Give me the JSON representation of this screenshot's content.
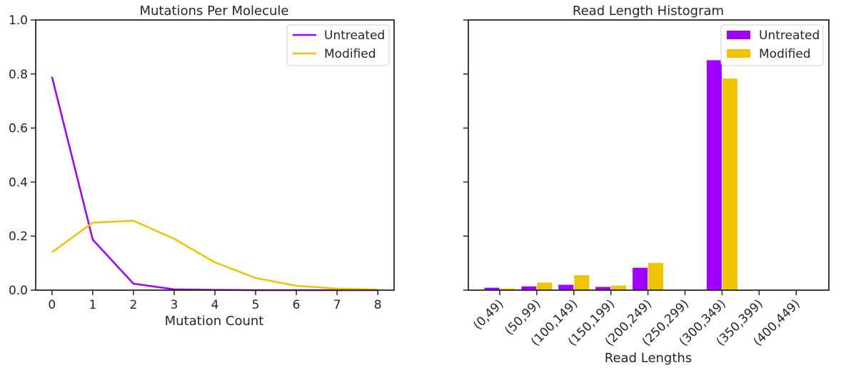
{
  "colors": {
    "untreated": "#a100ff",
    "modified": "#efc300"
  },
  "chart_data": [
    {
      "type": "line",
      "title": "Mutations Per Molecule",
      "xlabel": "Mutation Count",
      "ylabel": "",
      "xlim": [
        -0.4,
        8.4
      ],
      "ylim": [
        0,
        1.0
      ],
      "x": [
        0,
        1,
        2,
        3,
        4,
        5,
        6,
        7,
        8
      ],
      "x_ticks": [
        "0",
        "1",
        "2",
        "3",
        "4",
        "5",
        "6",
        "7",
        "8"
      ],
      "y_ticks": [
        "0.0",
        "0.2",
        "0.4",
        "0.6",
        "0.8",
        "1.0"
      ],
      "y_tick_values": [
        0,
        0.2,
        0.4,
        0.6,
        0.8,
        1.0
      ],
      "legend_position": "top-right",
      "grid": false,
      "series": [
        {
          "name": "Untreated",
          "values": [
            0.79,
            0.187,
            0.024,
            0.003,
            0.001,
            0,
            0,
            0,
            0
          ]
        },
        {
          "name": "Modified",
          "values": [
            0.14,
            0.25,
            0.257,
            0.19,
            0.103,
            0.045,
            0.016,
            0.006,
            0.002
          ]
        }
      ]
    },
    {
      "type": "bar",
      "title": "Read Length Histogram",
      "xlabel": "Read Lengths",
      "ylabel": "",
      "ylim": [
        0,
        1.0
      ],
      "categories": [
        "(0,49)",
        "(50,99)",
        "(100,149)",
        "(150,199)",
        "(200,249)",
        "(250,299)",
        "(300,349)",
        "(350,399)",
        "(400,449)"
      ],
      "legend_position": "top-right",
      "grid": false,
      "y_tick_labels_shown": false,
      "series": [
        {
          "name": "Untreated",
          "values": [
            0.009,
            0.014,
            0.02,
            0.012,
            0.083,
            0.001,
            0.851,
            0.001,
            0.001
          ]
        },
        {
          "name": "Modified",
          "values": [
            0.006,
            0.028,
            0.055,
            0.017,
            0.101,
            0.001,
            0.783,
            0.001,
            0.001
          ]
        }
      ]
    }
  ]
}
